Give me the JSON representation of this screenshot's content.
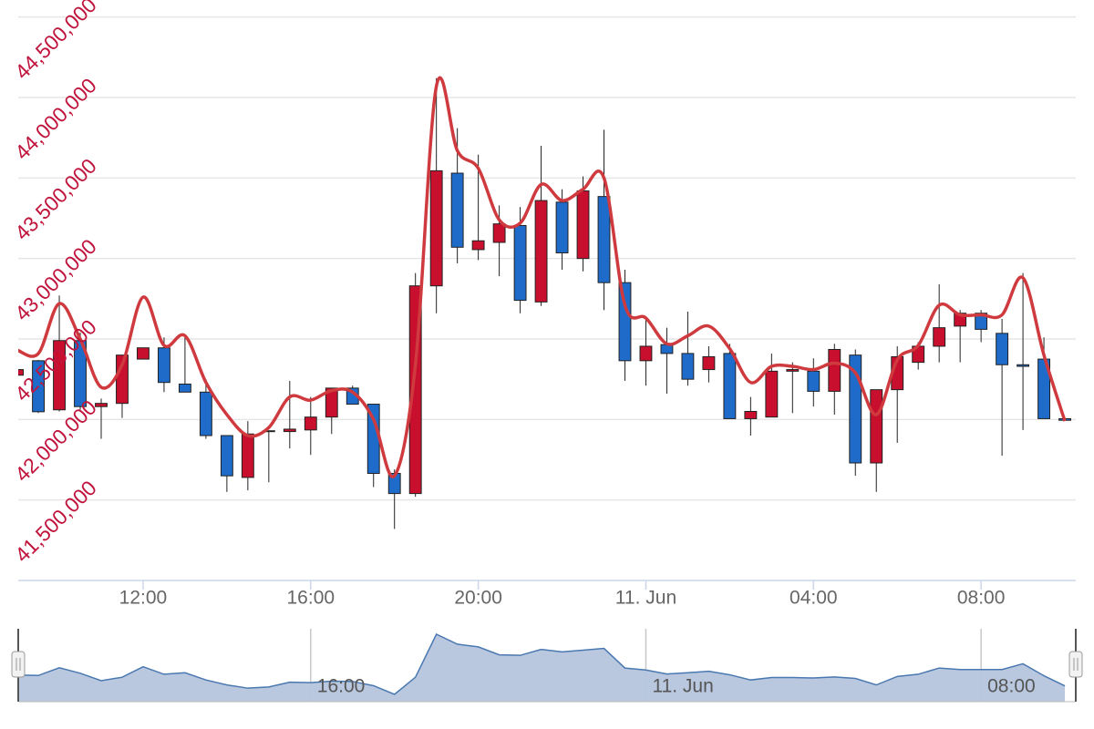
{
  "chart_data": {
    "type": "candlestick",
    "x": [
      9,
      9.5,
      10,
      10.5,
      11,
      11.5,
      12,
      12.5,
      13,
      13.5,
      14,
      14.5,
      15,
      15.5,
      16,
      16.5,
      17,
      17.5,
      18,
      18.5,
      19,
      19.5,
      20,
      20.5,
      21,
      21.5,
      22,
      22.5,
      23,
      23.5,
      24,
      24.5,
      25,
      25.5,
      26,
      26.5,
      27,
      27.5,
      28,
      28.5,
      29,
      29.5,
      30,
      30.5,
      31,
      31.5,
      32,
      32.5,
      33,
      33.5,
      34
    ],
    "xlim": [
      9.02,
      34.26
    ],
    "xticks": [
      {
        "value": 12,
        "label": "12:00"
      },
      {
        "value": 16,
        "label": "16:00"
      },
      {
        "value": 20,
        "label": "20:00"
      },
      {
        "value": 24,
        "label": "11. Jun"
      },
      {
        "value": 28,
        "label": "04:00"
      },
      {
        "value": 32,
        "label": "08:00"
      }
    ],
    "ylim": [
      41000000,
      44600000
    ],
    "yticks": [
      {
        "value": 41500000,
        "label": "41,500,000"
      },
      {
        "value": 42000000,
        "label": "42,000,000"
      },
      {
        "value": 42500000,
        "label": "42,500,000"
      },
      {
        "value": 43000000,
        "label": "43,000,000"
      },
      {
        "value": 43500000,
        "label": "43,500,000"
      },
      {
        "value": 44000000,
        "label": "44,000,000"
      },
      {
        "value": 44500000,
        "label": "44,500,000"
      }
    ],
    "grid": true,
    "series": [
      {
        "type": "candlestick",
        "up_color": "#c8102e",
        "down_color": "#1f6bc9",
        "open": [
          42275000,
          42365000,
          42060000,
          42490000,
          42080000,
          42100000,
          42375000,
          42445000,
          42220000,
          42170000,
          41900000,
          41640000,
          41925000,
          41925000,
          41935000,
          42015000,
          42195000,
          42095000,
          41665000,
          41540000,
          42830000,
          43530000,
          43055000,
          43100000,
          43205000,
          42730000,
          43350000,
          43000000,
          43385000,
          42850000,
          42365000,
          42465000,
          42410000,
          42310000,
          42410000,
          42005000,
          42015000,
          42300000,
          42300000,
          42175000,
          42400000,
          41730000,
          42185000,
          42355000,
          42455000,
          42580000,
          42660000,
          42535000,
          42340000,
          42375000,
          42005000
        ],
        "high": [
          42330000,
          42370000,
          42770000,
          42540000,
          42130000,
          42400000,
          42445000,
          42510000,
          42510000,
          42250000,
          41900000,
          41990000,
          41930000,
          42240000,
          42140000,
          42195000,
          42210000,
          42095000,
          41690000,
          42910000,
          44120000,
          43810000,
          43645000,
          43330000,
          43320000,
          43700000,
          43430000,
          43510000,
          43800000,
          42930000,
          42625000,
          42570000,
          42670000,
          42455000,
          42470000,
          42140000,
          42410000,
          42355000,
          42380000,
          42470000,
          42435000,
          42185000,
          42455000,
          42480000,
          42840000,
          42680000,
          42680000,
          42625000,
          42910000,
          42510000,
          42005000
        ],
        "low": [
          41970000,
          42040000,
          42050000,
          42060000,
          41880000,
          42010000,
          42375000,
          42170000,
          42170000,
          41880000,
          41550000,
          41560000,
          41610000,
          41820000,
          41780000,
          41910000,
          42095000,
          41580000,
          41320000,
          41520000,
          42660000,
          42970000,
          42990000,
          42890000,
          42660000,
          42705000,
          42930000,
          42920000,
          42680000,
          42240000,
          42210000,
          42160000,
          42210000,
          42230000,
          42005000,
          41900000,
          42015000,
          42040000,
          42080000,
          42030000,
          41650000,
          41550000,
          41855000,
          42310000,
          42355000,
          42355000,
          42480000,
          41775000,
          41935000,
          42005000,
          41995000
        ],
        "close": [
          42310000,
          42048000,
          42490000,
          42080000,
          42100000,
          42400000,
          42445000,
          42230000,
          42170000,
          41900000,
          41650000,
          41910000,
          41930000,
          41940000,
          42015000,
          42195000,
          42095000,
          41665000,
          41540000,
          42830000,
          43545000,
          43070000,
          43110000,
          43215000,
          42740000,
          43360000,
          43035000,
          43420000,
          42850000,
          42365000,
          42455000,
          42410000,
          42250000,
          42390000,
          42005000,
          42050000,
          42300000,
          42310000,
          42175000,
          42435000,
          41730000,
          42185000,
          42390000,
          42455000,
          42570000,
          42660000,
          42560000,
          42340000,
          42330000,
          42005000,
          41995000
        ]
      },
      {
        "type": "spline",
        "color": "#cf3a3f",
        "values": [
          42430000,
          42410000,
          42720000,
          42500000,
          42200000,
          42340000,
          42760000,
          42460000,
          42520000,
          42230000,
          42030000,
          41900000,
          41950000,
          42140000,
          42120000,
          42180000,
          42170000,
          42000000,
          41650000,
          42340000,
          44070000,
          43670000,
          43560000,
          43240000,
          43220000,
          43460000,
          43360000,
          43430000,
          43500000,
          42710000,
          42630000,
          42470000,
          42520000,
          42580000,
          42440000,
          42230000,
          42330000,
          42330000,
          42310000,
          42350000,
          42290000,
          42030000,
          42370000,
          42460000,
          42710000,
          42650000,
          42650000,
          42650000,
          42880000,
          42400000,
          41990000
        ]
      }
    ],
    "navigator": {
      "fill": "#b5c5dd",
      "line_color": "#4a78b0",
      "xticks": [
        1,
        3,
        5
      ]
    }
  }
}
